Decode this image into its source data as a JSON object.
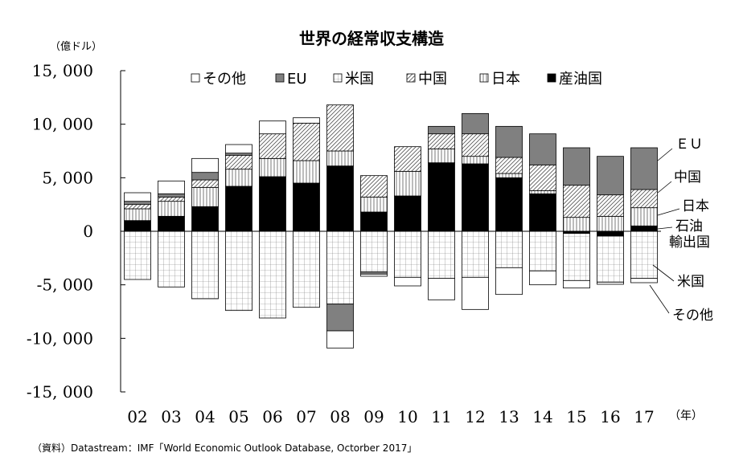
{
  "chart_data": {
    "type": "bar",
    "stacked": true,
    "title": "世界の経常収支構造",
    "ylabel": "（億ドル）",
    "xlabel": "（年）",
    "ylim": [
      -15000,
      15000
    ],
    "yticks": [
      15000,
      10000,
      5000,
      0,
      -5000,
      -10000,
      -15000
    ],
    "ytick_labels": [
      "15, 000",
      "10, 000",
      "5, 000",
      "0",
      "-5, 000",
      "-10, 000",
      "-15, 000"
    ],
    "grid": false,
    "legend_position": "top",
    "categories": [
      "02",
      "03",
      "04",
      "05",
      "06",
      "07",
      "08",
      "09",
      "10",
      "11",
      "12",
      "13",
      "14",
      "15",
      "16",
      "17"
    ],
    "series": [
      {
        "name": "産油国",
        "pattern": "solid-black",
        "values": [
          1000,
          1400,
          2300,
          4200,
          5100,
          4500,
          6100,
          1800,
          3300,
          6400,
          6300,
          5000,
          3500,
          -200,
          -450,
          500
        ]
      },
      {
        "name": "日本",
        "pattern": "grid",
        "values": [
          1100,
          1400,
          1800,
          1600,
          1700,
          2100,
          1400,
          1400,
          2300,
          1300,
          700,
          400,
          300,
          1300,
          1400,
          1700
        ]
      },
      {
        "name": "中国",
        "pattern": "hatch",
        "values": [
          400,
          400,
          700,
          1300,
          2300,
          3500,
          4300,
          2000,
          2300,
          1400,
          2100,
          1500,
          2400,
          3000,
          2000,
          1700
        ]
      },
      {
        "name": "米国",
        "pattern": "light-grid",
        "values": [
          -4500,
          -5200,
          -6300,
          -7400,
          -8100,
          -7100,
          -6800,
          -3800,
          -4300,
          -4400,
          -4300,
          -3400,
          -3700,
          -4400,
          -4300,
          -4400
        ]
      },
      {
        "name": "EU",
        "pattern": "gray",
        "values": [
          300,
          300,
          700,
          200,
          0,
          0,
          -2500,
          -200,
          0,
          700,
          1900,
          2900,
          2900,
          3500,
          3600,
          3900
        ]
      },
      {
        "name": "その他",
        "pattern": "white",
        "values": [
          800,
          1200,
          1300,
          800,
          1200,
          500,
          -1600,
          -200,
          -800,
          -2000,
          -3000,
          -2500,
          -1300,
          -700,
          -200,
          -400
        ]
      }
    ],
    "legend_labels": [
      "その他",
      "EU",
      "米国",
      "中国",
      "日本",
      "産油国"
    ],
    "right_labels": {
      "eu": "ＥＵ",
      "china": "中国",
      "japan": "日本",
      "oil1": "石油",
      "oil2": "輸出国",
      "us": "米国",
      "other": "その他"
    }
  },
  "source_note": "（資料）Datastream：IMF「World Economic Outlook Database, Octorber 2017」",
  "colors": {
    "oil": "#000000",
    "japan": "#ffffff",
    "china": "#ffffff",
    "us": "#ffffff",
    "eu": "#808080",
    "other": "#ffffff"
  }
}
